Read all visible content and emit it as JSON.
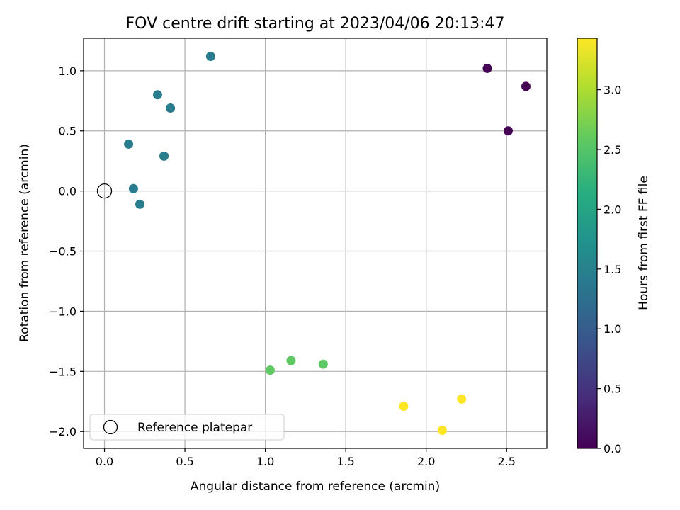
{
  "chart_data": {
    "type": "scatter",
    "title": "FOV centre drift starting at 2023/04/06 20:13:47",
    "xlabel": "Angular distance from reference (arcmin)",
    "ylabel": "Rotation from reference (arcmin)",
    "xlim": [
      -0.13,
      2.75
    ],
    "ylim": [
      -2.14,
      1.27
    ],
    "xticks": [
      0.0,
      0.5,
      1.0,
      1.5,
      2.0,
      2.5
    ],
    "xtick_labels": [
      "0.0",
      "0.5",
      "1.0",
      "1.5",
      "2.0",
      "2.5"
    ],
    "yticks": [
      1.0,
      0.5,
      0.0,
      -0.5,
      -1.0,
      -1.5,
      -2.0
    ],
    "ytick_labels": [
      "1.0",
      "0.5",
      "0.0",
      "−0.5",
      "−1.0",
      "−1.5",
      "−2.0"
    ],
    "grid": true,
    "colormap": "viridis",
    "colorbar": {
      "label": "Hours from first FF file",
      "range": [
        0.0,
        3.43
      ],
      "ticks": [
        0.0,
        0.5,
        1.0,
        1.5,
        2.0,
        2.5,
        3.0
      ],
      "tick_labels": [
        "0.0",
        "0.5",
        "1.0",
        "1.5",
        "2.0",
        "2.5",
        "3.0"
      ]
    },
    "points": [
      {
        "x": 2.38,
        "y": 1.02,
        "c": 0.0
      },
      {
        "x": 2.62,
        "y": 0.87,
        "c": 0.0
      },
      {
        "x": 2.51,
        "y": 0.5,
        "c": 0.0
      },
      {
        "x": 0.66,
        "y": 1.12,
        "c": 1.43
      },
      {
        "x": 0.33,
        "y": 0.8,
        "c": 1.43
      },
      {
        "x": 0.41,
        "y": 0.69,
        "c": 1.43
      },
      {
        "x": 0.15,
        "y": 0.39,
        "c": 1.43
      },
      {
        "x": 0.37,
        "y": 0.29,
        "c": 1.43
      },
      {
        "x": 0.18,
        "y": 0.02,
        "c": 1.43
      },
      {
        "x": 0.22,
        "y": -0.11,
        "c": 1.43
      },
      {
        "x": 1.03,
        "y": -1.49,
        "c": 2.57
      },
      {
        "x": 1.16,
        "y": -1.41,
        "c": 2.57
      },
      {
        "x": 1.36,
        "y": -1.44,
        "c": 2.57
      },
      {
        "x": 1.86,
        "y": -1.79,
        "c": 3.43
      },
      {
        "x": 2.1,
        "y": -1.99,
        "c": 3.43
      },
      {
        "x": 2.22,
        "y": -1.73,
        "c": 3.43
      }
    ],
    "reference_point": {
      "x": 0.0,
      "y": 0.0
    },
    "legend": {
      "placement": "lower-left",
      "entries": [
        "Reference platepar"
      ]
    }
  }
}
